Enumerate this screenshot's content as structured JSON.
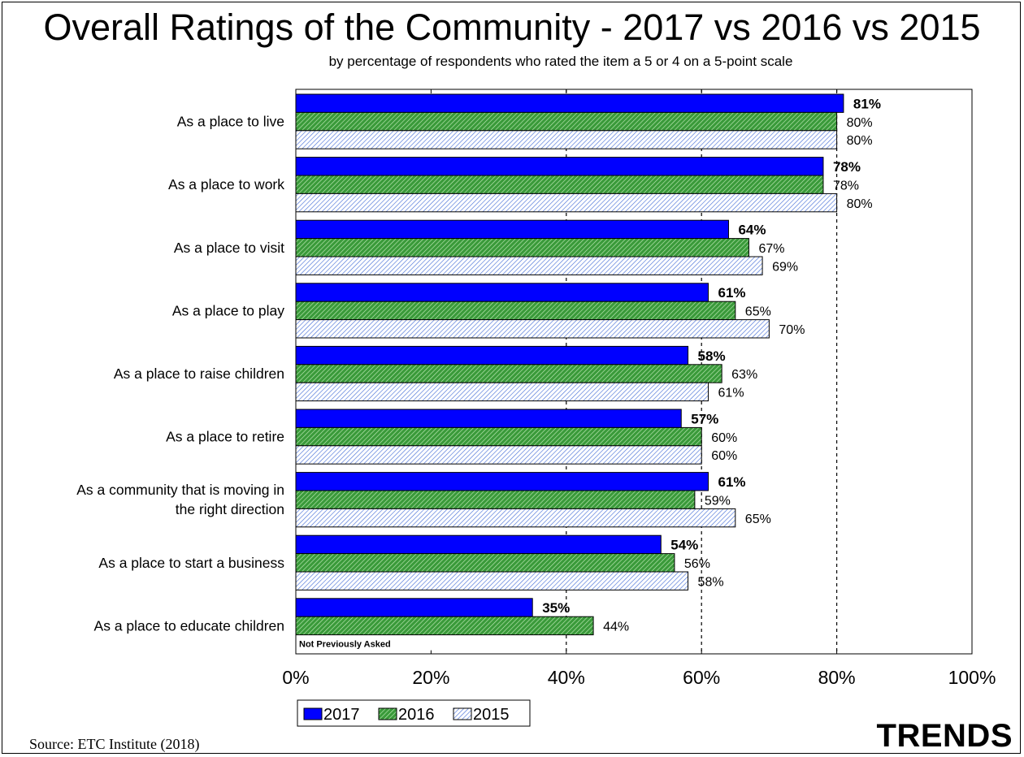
{
  "chart_data": {
    "type": "bar",
    "orientation": "horizontal",
    "title": "Overall Ratings of the Community - 2017 vs 2016 vs 2015",
    "subtitle": "by percentage of respondents who rated the item a 5 or 4 on a 5-point scale",
    "categories": [
      [
        "As a place to live"
      ],
      [
        "As a place to work"
      ],
      [
        "As a place to visit"
      ],
      [
        "As a place to play"
      ],
      [
        "As a place to raise children"
      ],
      [
        "As a place to retire"
      ],
      [
        "As a community that is moving in",
        "the right direction"
      ],
      [
        "As a place to start a business"
      ],
      [
        "As a place to educate children"
      ]
    ],
    "series": [
      {
        "name": "2017",
        "color": "#0000ff",
        "pattern": "solid",
        "values": [
          81,
          78,
          64,
          61,
          58,
          57,
          61,
          54,
          35
        ]
      },
      {
        "name": "2016",
        "color": "#3a9a3a",
        "pattern": "hatch",
        "values": [
          80,
          78,
          67,
          65,
          63,
          60,
          59,
          56,
          44
        ]
      },
      {
        "name": "2015",
        "color": "#5b84e0",
        "pattern": "hatch-light",
        "values": [
          80,
          80,
          69,
          70,
          61,
          60,
          65,
          58,
          null
        ]
      }
    ],
    "xlim": [
      0,
      100
    ],
    "xticks": [
      "0%",
      "20%",
      "40%",
      "60%",
      "80%",
      "100%"
    ],
    "gridlines": "dashed vertical at 40%, 60%, 80%",
    "legend_position": "bottom-left",
    "annotations": [
      "Not Previously Asked"
    ]
  },
  "footer": {
    "source": "Source:  ETC Institute (2018)",
    "brand": "TRENDS"
  }
}
